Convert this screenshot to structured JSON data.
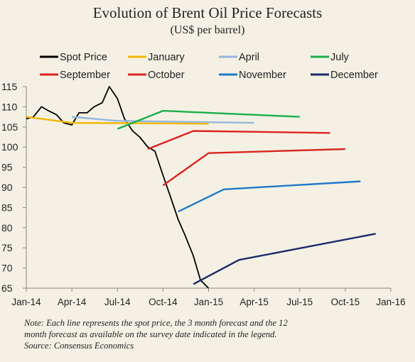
{
  "title": "Evolution of Brent Oil Price Forecasts",
  "subtitle": "(US$ per barrel)",
  "note_lines": [
    "Note: Each line represents the spot price, the 3 month forecast and the 12",
    "month forecast as available on the survey date indicated in the legend.",
    "Source: Consensus Economics"
  ],
  "colors": {
    "background": "#f4f1e4",
    "axis": "#888888",
    "text": "#222222"
  },
  "chart_data": {
    "type": "line",
    "title": "Evolution of Brent Oil Price Forecasts",
    "subtitle": "(US$ per barrel)",
    "xlabel": "",
    "ylabel": "",
    "ylim": [
      65,
      115
    ],
    "yticks": [
      65,
      70,
      75,
      80,
      85,
      90,
      95,
      100,
      105,
      110,
      115
    ],
    "xlim": [
      "2014-01",
      "2016-01"
    ],
    "xticks": [
      "Jan-14",
      "Apr-14",
      "Jul-14",
      "Oct-14",
      "Jan-15",
      "Apr-15",
      "Jul-15",
      "Oct-15",
      "Jan-16"
    ],
    "grid": false,
    "legend": "top",
    "series": [
      {
        "name": "Spot Price",
        "color": "#000000",
        "x": [
          "2014-01",
          "2014-01-15",
          "2014-02",
          "2014-02-15",
          "2014-03",
          "2014-03-15",
          "2014-04",
          "2014-04-15",
          "2014-05",
          "2014-05-15",
          "2014-06",
          "2014-06-15",
          "2014-07",
          "2014-07-15",
          "2014-08",
          "2014-08-15",
          "2014-09",
          "2014-09-15",
          "2014-10",
          "2014-10-15",
          "2014-11",
          "2014-11-15",
          "2014-12",
          "2014-12-15",
          "2015-01"
        ],
        "y": [
          107,
          107.5,
          110,
          109,
          108,
          106,
          105.5,
          108.5,
          108.5,
          110,
          111,
          115,
          112,
          107,
          104,
          102.5,
          100,
          99,
          93,
          88,
          82,
          78,
          73,
          67,
          65
        ]
      },
      {
        "name": "January",
        "color": "#f2b705",
        "x": [
          "2014-01",
          "2014-04",
          "2015-01"
        ],
        "y": [
          107.5,
          106,
          105.8
        ]
      },
      {
        "name": "April",
        "color": "#94b6dd",
        "x": [
          "2014-04",
          "2014-07",
          "2015-04"
        ],
        "y": [
          107.5,
          106.5,
          106
        ]
      },
      {
        "name": "July",
        "color": "#1aaf4a",
        "x": [
          "2014-07",
          "2014-10",
          "2015-07"
        ],
        "y": [
          104.5,
          109,
          107.5
        ]
      },
      {
        "name": "September",
        "color": "#e02121",
        "x": [
          "2014-09",
          "2014-12",
          "2015-09"
        ],
        "y": [
          99.5,
          104,
          103.5
        ]
      },
      {
        "name": "October",
        "color": "#d7261e",
        "x": [
          "2014-10",
          "2015-01",
          "2015-10"
        ],
        "y": [
          90.5,
          98.5,
          99.5
        ]
      },
      {
        "name": "November",
        "color": "#1f78c8",
        "x": [
          "2014-11",
          "2015-02",
          "2015-11"
        ],
        "y": [
          84,
          89.5,
          91.5
        ]
      },
      {
        "name": "December",
        "color": "#1c2a6b",
        "x": [
          "2014-12",
          "2015-03",
          "2015-12"
        ],
        "y": [
          66,
          72,
          78.5
        ]
      }
    ]
  }
}
